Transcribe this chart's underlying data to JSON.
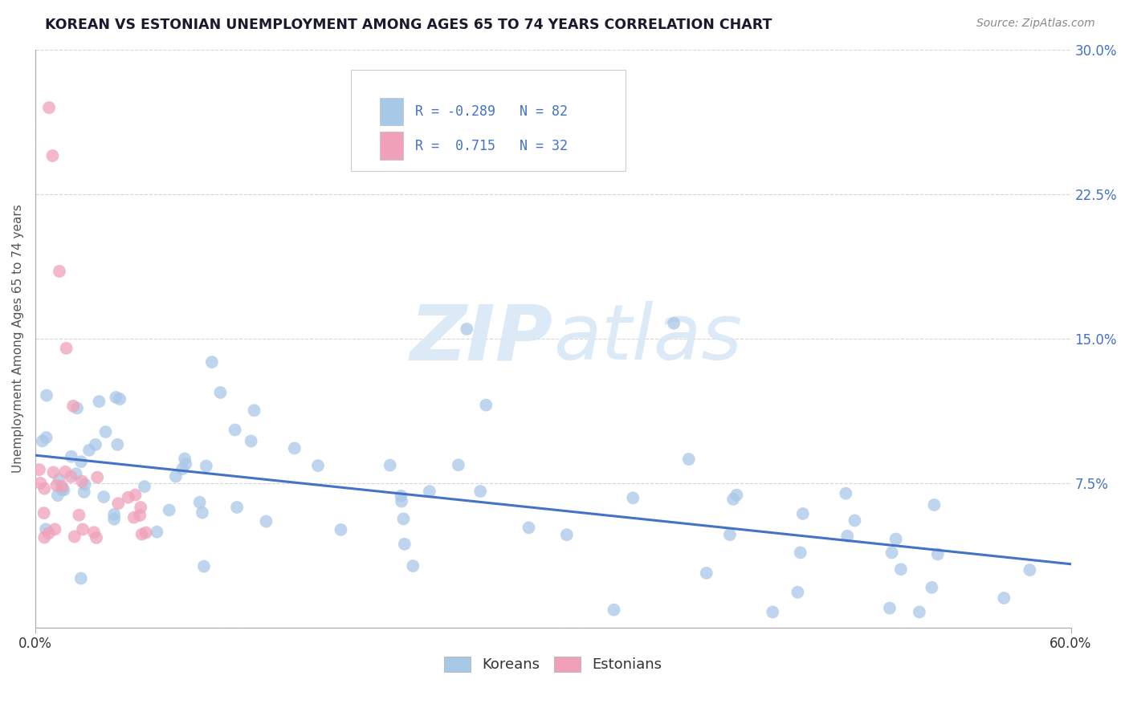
{
  "title": "KOREAN VS ESTONIAN UNEMPLOYMENT AMONG AGES 65 TO 74 YEARS CORRELATION CHART",
  "source": "Source: ZipAtlas.com",
  "ylabel": "Unemployment Among Ages 65 to 74 years",
  "xlim": [
    0.0,
    0.6
  ],
  "ylim": [
    0.0,
    0.3
  ],
  "xtick_positions": [
    0.0,
    0.6
  ],
  "xtick_labels": [
    "0.0%",
    "60.0%"
  ],
  "yticks": [
    0.0,
    0.075,
    0.15,
    0.225,
    0.3
  ],
  "ytick_labels": [
    "",
    "7.5%",
    "15.0%",
    "22.5%",
    "30.0%"
  ],
  "korean_color": "#A8C8E8",
  "estonian_color": "#F0A0B8",
  "korean_line_color": "#4472C4",
  "estonian_line_color": "#E06080",
  "korean_R": -0.289,
  "korean_N": 82,
  "estonian_R": 0.715,
  "estonian_N": 32,
  "background_color": "#FFFFFF",
  "watermark_color": "#D8E8F5",
  "title_color": "#1a1a2e",
  "source_color": "#888888",
  "ylabel_color": "#555555",
  "ytick_color": "#4472C4",
  "xtick_color": "#333333",
  "grid_color": "#CCCCCC",
  "legend_edge_color": "#CCCCCC",
  "legend_text_color": "#4472C4"
}
